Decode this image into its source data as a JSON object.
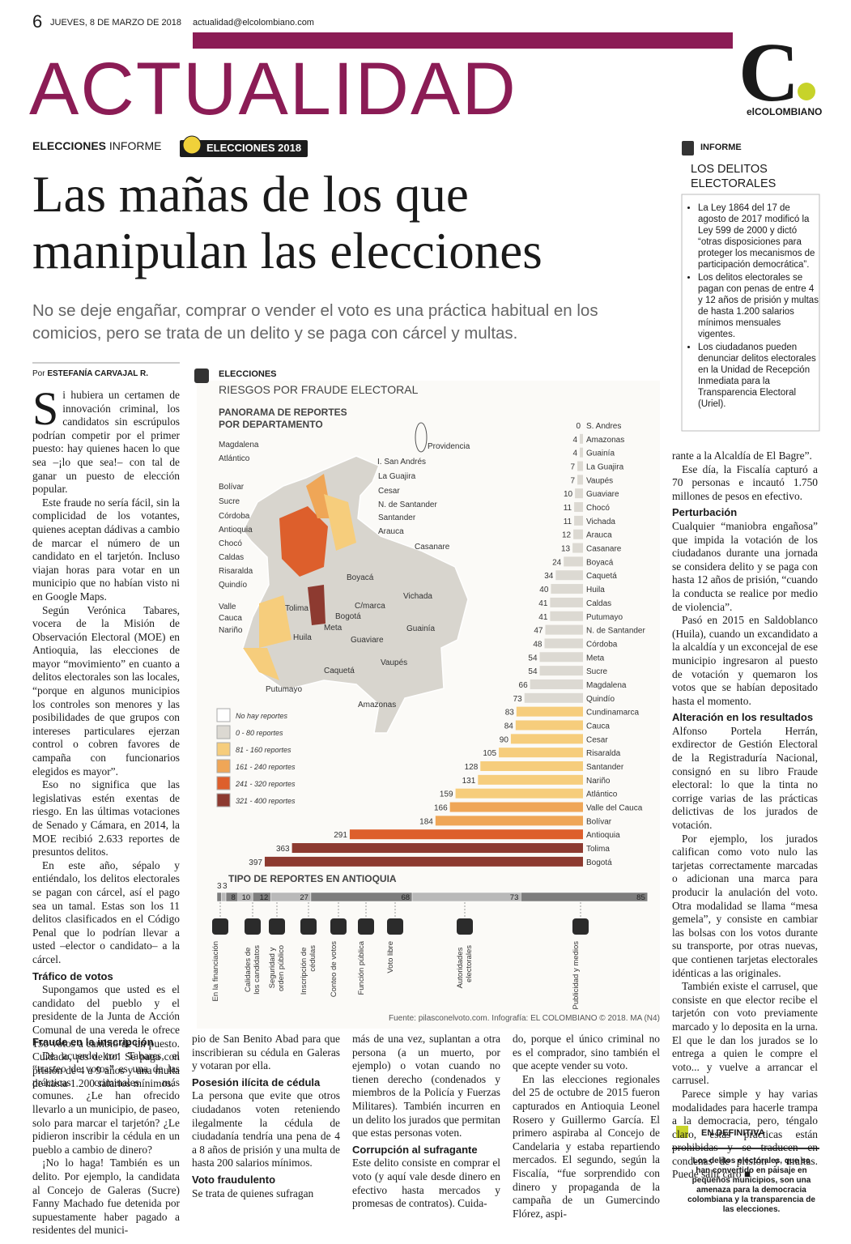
{
  "header": {
    "page": "6",
    "date": "JUEVES, 8 DE MARZO DE 2018",
    "email": "actualidad@elcolombiano.com",
    "section": "ACTUALIDAD",
    "logo_letter": "C",
    "logo_name": "elCOLOMBIANO"
  },
  "kicker": {
    "section": "ELECCIONES",
    "type": "INFORME",
    "badge": "ELECCIONES 2018"
  },
  "headline": "Las mañas de los que manipulan las elecciones",
  "deck": "No se deje engañar, comprar o vender el voto es una práctica habitual en los comicios, pero se trata de un delito y se paga con cárcel y multas.",
  "byline": {
    "prefix": "Por",
    "name": "ESTEFANÍA CARVAJAL R."
  },
  "columns": [
    [
      {
        "p": "Si hubiera un certamen de innovación criminal, los candidatos sin escrúpulos podrían competir por el primer puesto: hay quienes hacen lo que sea –¡lo que sea!– con tal de ganar un puesto de elección popular."
      },
      {
        "p": "Este fraude no sería fácil, sin la complicidad de los votantes, quienes aceptan dádivas a cambio de marcar el número de un candidato en el tarjetón. Incluso viajan horas para votar en un municipio que no habían visto ni en Google Maps."
      },
      {
        "p": "Según Verónica Tabares, vocera de la Misión de Observación Electoral (MOE) en Antioquia, las elecciones de mayor “movimiento” en cuanto a delitos electorales son las locales, “porque en algunos municipios los controles son menores y las posibilidades de que grupos con intereses particulares ejerzan control o cobren favores de campaña con funcionarios elegidos es mayor”."
      },
      {
        "p": "Eso no significa que las legislativas estén exentas de riesgo. En las últimas votaciones de Senado y Cámara, en 2014, la MOE recibió 2.633 reportes de presuntos delitos."
      },
      {
        "p": "En este año, sépalo y entiéndalo, los delitos electorales se pagan con cárcel, así el pago sea un tamal. Estas son los 11 delitos clasificados en el Código Penal que lo podrían llevar a usted –elector o candidato– a la cárcel."
      },
      {
        "h": "Tráfico de votos"
      },
      {
        "p": "Supongamos que usted es el candidato del pueblo y el presidente de la Junta de Acción Comunal de una vereda le ofrece 150 votos a cambio de un puesto. Cuidado, ¡es delito! Se paga con prisión de 4 a 9 años y una multa de hasta 1.200 salarios mínimos."
      }
    ],
    [
      {
        "h": "Fraude en la inscripción"
      },
      {
        "p": "De acuerdo con Tabares, el “trasteo de votos” es una de las prácticas criminales más comunes. ¿Le han ofrecido llevarlo a un municipio, de paseo, solo para marcar el tarjetón? ¿Le pidieron inscribir la cédula en un pueblo a cambio de dinero?"
      },
      {
        "p": "¡No lo haga! También es un delito. Por ejemplo, la candidata al Concejo de Galeras (Sucre) Fanny Machado fue detenida por supuestamente haber pagado a residentes del munici-"
      }
    ],
    [
      {
        "c": "pio de San Benito Abad para que inscribieran su cédula en Galeras y votaran por ella."
      },
      {
        "h": "Posesión ilícita de cédula"
      },
      {
        "c": "La persona que evite que otros ciudadanos voten reteniendo ilegalmente la cédula de ciudadanía tendría una pena de 4 a 8 años de prisión y una multa de hasta 200 salarios mínimos."
      },
      {
        "h": "Voto fraudulento"
      },
      {
        "c": "Se trata de quienes sufragan"
      }
    ],
    [
      {
        "c": "más de una vez, suplantan a otra persona (a un muerto, por ejemplo) o votan cuando no tienen derecho (condenados y miembros de la Policía y Fuerzas Militares). También incurren en un delito los jurados que permitan que estas personas voten."
      },
      {
        "h": "Corrupción al sufragante"
      },
      {
        "c": "Este delito consiste en comprar el voto (y aquí vale desde dinero en efectivo hasta mercados y promesas de contratos). Cuida-"
      }
    ],
    [
      {
        "c": "do, porque el único criminal no es el comprador, sino también el que acepte vender su voto."
      },
      {
        "p": "En las elecciones regionales del 25 de octubre de 2015 fueron capturados en Antioquia Leonel Rosero y Guillermo García. El primero aspiraba al Concejo de Candelaria y estaba repartiendo mercados. El segundo, según la Fiscalía, “fue sorprendido con dinero y propaganda de la campaña de un Gumercindo Flórez, aspi-"
      }
    ],
    [
      {
        "c": "rante a la Alcaldía de El Bagre”."
      },
      {
        "p": "Ese día, la Fiscalía capturó a 70 personas e incautó 1.750 millones de pesos en efectivo."
      },
      {
        "h": "Perturbación"
      },
      {
        "c": "Cualquier “maniobra engañosa” que impida la votación de los ciudadanos durante una jornada se considera delito y se paga con hasta 12 años de prisión, “cuando la conducta se realice por medio de violencia”."
      },
      {
        "p": "Pasó en 2015 en Saldoblanco (Huila), cuando un excandidato a la alcaldía y un exconcejal de ese municipio ingresaron al puesto de votación y quemaron los votos que se habían depositado hasta el momento."
      },
      {
        "h": "Alteración en los resultados"
      },
      {
        "c": "Alfonso Portela Herrán, exdirector de Gestión Electoral de la Registraduría Nacional, consignó en su libro Fraude electoral: lo que la tinta no corrige varias de las prácticas delictivas de los jurados de votación."
      },
      {
        "p": "Por ejemplo, los jurados califican como voto nulo las tarjetas correctamente marcadas o adicionan una marca para producir la anulación del voto. Otra modalidad se llama “mesa gemela”, y consiste en cambiar las bolsas con los votos durante su transporte, por otras nuevas, que contienen tarjetas electorales idénticas a las originales."
      },
      {
        "p": "También existe el carrusel, que consiste en que elector recibe el tarjetón con voto previamente marcado y lo deposita en la urna. El que le dan los jurados se lo entrega a quien le compre el voto... y vuelve a arrancar el carrusel."
      },
      {
        "p": "Parece simple y hay varias modalidades para hacerle trampa a la democracia, pero, téngalo claro, estas prácticas están prohibidas y se traducen en condenas de prisión y multas. Puede salir caro ■"
      }
    ]
  ],
  "sidebar": {
    "label": "INFORME",
    "title": "LOS DELITOS ELECTORALES",
    "bullets": [
      "La Ley 1864 del 17 de agosto de 2017 modificó la Ley 599 de 2000 y dictó “otras disposiciones para proteger los mecanismos de participación democrática”.",
      "Los delitos electorales se pagan con penas de entre 4 y 12 años de prisión y multas de hasta 1.200 salarios mínimos mensuales vigentes.",
      "Los ciudadanos pueden denunciar delitos electorales en la Unidad de Recepción Inmediata para la Transparencia Electoral (Uriel)."
    ]
  },
  "summary": {
    "label": "EN DEFINITIVA",
    "text": "Los delitos electorales, que se han convertido en paisaje en pequeños municipios, son una amenaza para la democracia colombiana y la transparencia de las elecciones."
  },
  "infographic": {
    "kicker": "ELECCIONES",
    "title": "RIESGOS POR FRAUDE ELECTORAL",
    "source": "Fuente: pilasconelvoto.com. Infografía: EL COLOMBIANO © 2018. MA (N4)",
    "map_labels": [
      "Magdalena",
      "Atlántico",
      "Bolívar",
      "Sucre",
      "Córdoba",
      "Antioquia",
      "Chocó",
      "Caldas",
      "Risaralda",
      "Quindío",
      "Valle",
      "Cauca",
      "Nariño",
      "La Guajira",
      "Cesar",
      "N. de Santander",
      "Santander",
      "Arauca",
      "Casanare",
      "Boyacá",
      "Vichada",
      "C/marca",
      "Bogotá",
      "Tolima",
      "Huila",
      "Meta",
      "Guainía",
      "Guaviare",
      "Vaupés",
      "Caquetá",
      "Putumayo",
      "Amazonas",
      "Providencia",
      "I. San Andrés"
    ],
    "legend": [
      {
        "label": "No hay reportes",
        "color": "#ffffff"
      },
      {
        "label": "0 - 80 reportes",
        "color": "#dcd9d2"
      },
      {
        "label": "81 - 160 reportes",
        "color": "#f6cd7c"
      },
      {
        "label": "161 - 240 reportes",
        "color": "#efa657"
      },
      {
        "label": "241 - 320 reportes",
        "color": "#dd5f2c"
      },
      {
        "label": "321 - 400 reportes",
        "color": "#8d3a30"
      }
    ]
  },
  "chart_data": [
    {
      "type": "hbar",
      "title": "PANORAMA DE REPORTES POR DEPARTAMENTO",
      "categories": [
        "S. Andres",
        "Amazonas",
        "Guainía",
        "La Guajira",
        "Vaupés",
        "Guaviare",
        "Chocó",
        "Vichada",
        "Arauca",
        "Casanare",
        "Boyacá",
        "Caquetá",
        "Huila",
        "Caldas",
        "Putumayo",
        "N. de Santander",
        "Córdoba",
        "Meta",
        "Sucre",
        "Magdalena",
        "Quindío",
        "Cundinamarca",
        "Cauca",
        "Cesar",
        "Risaralda",
        "Santander",
        "Nariño",
        "Atlántico",
        "Valle del Cauca",
        "Bolívar",
        "Antioquia",
        "Tolima",
        "Bogotá"
      ],
      "values": [
        0,
        4,
        4,
        7,
        7,
        10,
        11,
        11,
        12,
        13,
        24,
        34,
        40,
        41,
        41,
        47,
        48,
        54,
        54,
        66,
        73,
        83,
        84,
        90,
        105,
        128,
        131,
        159,
        166,
        184,
        291,
        363,
        397
      ],
      "colors": [
        "#ffffff",
        "#dcd9d2",
        "#dcd9d2",
        "#dcd9d2",
        "#dcd9d2",
        "#dcd9d2",
        "#dcd9d2",
        "#dcd9d2",
        "#dcd9d2",
        "#dcd9d2",
        "#dcd9d2",
        "#dcd9d2",
        "#dcd9d2",
        "#dcd9d2",
        "#dcd9d2",
        "#dcd9d2",
        "#dcd9d2",
        "#dcd9d2",
        "#dcd9d2",
        "#dcd9d2",
        "#dcd9d2",
        "#f6cd7c",
        "#f6cd7c",
        "#f6cd7c",
        "#f6cd7c",
        "#f6cd7c",
        "#f6cd7c",
        "#f6cd7c",
        "#efa657",
        "#efa657",
        "#dd5f2c",
        "#8d3a30",
        "#8d3a30"
      ]
    },
    {
      "type": "stacked_hbar",
      "title": "TIPO DE REPORTES EN ANTIOQUIA",
      "categories": [
        "En la financiación",
        "Calidades de los candidatos",
        "Seguridad y orden público",
        "Inscripción de cédulas",
        "Conteo de votos",
        "Función pública",
        "Voto libre",
        "Autoridades electorales",
        "Publicidad y medios"
      ],
      "values": [
        3,
        3,
        8,
        10,
        12,
        27,
        68,
        73,
        85
      ],
      "colors": [
        "#7d7d7d",
        "#b9b9b9",
        "#7d7d7d",
        "#b9b9b9",
        "#7d7d7d",
        "#b9b9b9",
        "#7d7d7d",
        "#b9b9b9",
        "#7d7d7d"
      ]
    }
  ]
}
